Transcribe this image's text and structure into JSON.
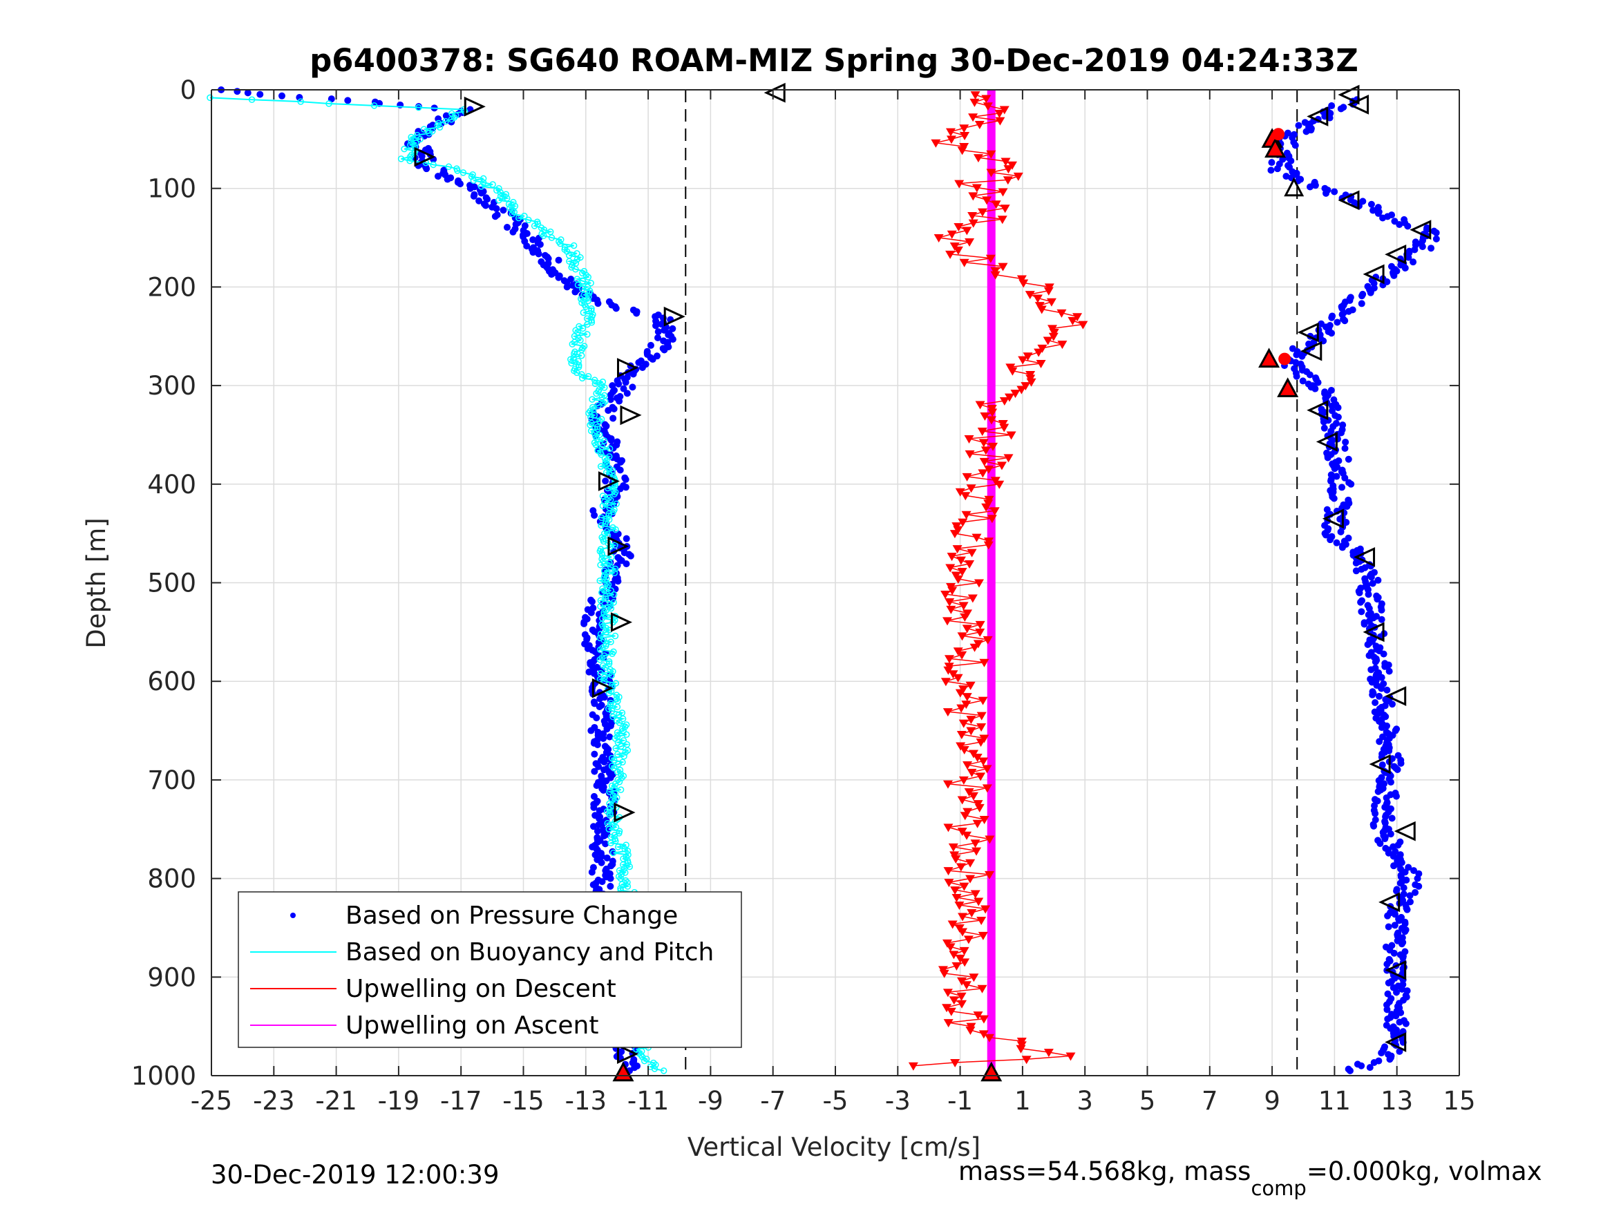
{
  "chart_data": {
    "type": "scatter",
    "title": "p6400378: SG640 ROAM-MIZ Spring 30-Dec-2019 04:24:33Z",
    "xlabel": "Vertical Velocity [cm/s]",
    "ylabel": "Depth [m]",
    "xlim": [
      -25,
      15
    ],
    "ylim": [
      0,
      1000
    ],
    "y_reversed": true,
    "grid": true,
    "x_ticks": [
      -25,
      -23,
      -21,
      -19,
      -17,
      -15,
      -13,
      -11,
      -9,
      -7,
      -5,
      -3,
      -1,
      1,
      3,
      5,
      7,
      9,
      11,
      13,
      15
    ],
    "y_ticks": [
      0,
      100,
      200,
      300,
      400,
      500,
      600,
      700,
      800,
      900,
      1000
    ],
    "reference_lines_x": [
      -9.8,
      9.8
    ],
    "legend_position": "bottom-left",
    "series": [
      {
        "name": "Based on Pressure Change",
        "color": "#0000ff",
        "style": "dots",
        "descent": {
          "x": [
            -25,
            -17,
            -18.5,
            -18,
            -16.5,
            -15.5,
            -14.5,
            -13.5,
            -12.5,
            -11.5,
            -10.5,
            -10.3,
            -11,
            -11.5,
            -11.8,
            -12.5,
            -12,
            -12.5,
            -11.7,
            -12.8,
            -12.5,
            -12.5,
            -12.4,
            -12.5,
            -12.4,
            -11.8,
            -11.8,
            -11.6
          ],
          "y": [
            0,
            20,
            50,
            80,
            100,
            130,
            160,
            200,
            215,
            225,
            230,
            250,
            270,
            285,
            300,
            330,
            400,
            430,
            460,
            540,
            600,
            650,
            720,
            800,
            830,
            900,
            950,
            995
          ]
        },
        "ascent": {
          "x": [
            11.5,
            10.5,
            9.5,
            9.2,
            10.5,
            11.5,
            12.8,
            14.2,
            13.5,
            12.5,
            11.5,
            10.5,
            9.5,
            10.5,
            11,
            11.2,
            11,
            12,
            12.3,
            12.5,
            12.8,
            12.5,
            13.5,
            13,
            13,
            13,
            12.8,
            11.5
          ],
          "y": [
            10,
            30,
            50,
            80,
            100,
            110,
            130,
            145,
            170,
            190,
            220,
            250,
            275,
            300,
            340,
            400,
            450,
            480,
            550,
            620,
            680,
            750,
            800,
            830,
            890,
            960,
            980,
            995
          ]
        }
      },
      {
        "name": "Based on Buoyancy and Pitch",
        "color": "#00ffff",
        "style": "line-markers",
        "x": [
          -25,
          -17,
          -18.5,
          -18.8,
          -17,
          -16,
          -15,
          -13.5,
          -13,
          -13,
          -13.2,
          -13.3,
          -12.5,
          -12.7,
          -12.2,
          -12.3,
          -12.3,
          -12.3,
          -11.8,
          -12.2,
          -11.7,
          -11.5,
          -11.3,
          -11.2,
          -11.2,
          -10.5
        ],
        "y": [
          8,
          20,
          50,
          70,
          80,
          100,
          130,
          160,
          200,
          230,
          260,
          285,
          300,
          330,
          400,
          470,
          540,
          600,
          650,
          730,
          800,
          850,
          900,
          950,
          985,
          995
        ]
      },
      {
        "name": "Upwelling on Descent",
        "color": "#ff0000",
        "style": "line-triangles",
        "x": [
          -0.5,
          0.5,
          -1.5,
          1,
          -0.5,
          0.2,
          -1.2,
          -0.5,
          1.5,
          2.5,
          1.5,
          0.5,
          0,
          -0.3,
          -0.5,
          -0.8,
          -0.7,
          -0.8,
          -0.9,
          -0.8,
          -0.7,
          -0.8,
          -0.9,
          -0.7,
          2,
          -2.5
        ],
        "y": [
          5,
          20,
          50,
          80,
          95,
          120,
          150,
          175,
          200,
          230,
          270,
          300,
          350,
          400,
          450,
          500,
          550,
          600,
          650,
          700,
          800,
          850,
          900,
          950,
          980,
          990
        ]
      },
      {
        "name": "Upwelling on Ascent",
        "color": "#ff00ff",
        "style": "thick-line",
        "x": [
          0,
          0
        ],
        "y": [
          0,
          1000
        ]
      }
    ],
    "markers": {
      "descent_triangles": [
        {
          "x": -16.6,
          "y": 17
        },
        {
          "x": -18.2,
          "y": 68
        },
        {
          "x": -10.2,
          "y": 230
        },
        {
          "x": -11.7,
          "y": 282
        },
        {
          "x": -11.6,
          "y": 330
        },
        {
          "x": -12.3,
          "y": 397
        },
        {
          "x": -12,
          "y": 463
        },
        {
          "x": -11.9,
          "y": 540
        },
        {
          "x": -12.5,
          "y": 607
        },
        {
          "x": -11.8,
          "y": 733
        },
        {
          "x": -12.6,
          "y": 828
        },
        {
          "x": -11.7,
          "y": 978
        }
      ],
      "ascent_triangles": [
        {
          "x": 11.5,
          "y": 5
        },
        {
          "x": 11.8,
          "y": 15
        },
        {
          "x": 10.5,
          "y": 27
        },
        {
          "x": 11.5,
          "y": 112
        },
        {
          "x": 13.8,
          "y": 142
        },
        {
          "x": 13,
          "y": 167
        },
        {
          "x": 12.3,
          "y": 187
        },
        {
          "x": 10.2,
          "y": 246
        },
        {
          "x": 10.3,
          "y": 265
        },
        {
          "x": 10.5,
          "y": 325
        },
        {
          "x": 10.8,
          "y": 357
        },
        {
          "x": 11,
          "y": 435
        },
        {
          "x": 12,
          "y": 474
        },
        {
          "x": 12.3,
          "y": 550
        },
        {
          "x": 13,
          "y": 615
        },
        {
          "x": 12.5,
          "y": 684
        },
        {
          "x": 13.3,
          "y": 752
        },
        {
          "x": 12.8,
          "y": 824
        },
        {
          "x": 13,
          "y": 893
        },
        {
          "x": 13,
          "y": 966
        },
        {
          "x": -6.9,
          "y": 3
        }
      ],
      "ascent_open_up_triangle": {
        "x": 9.7,
        "y": 100
      },
      "red_filled_triangles": [
        {
          "x": -11.8,
          "y": 997
        },
        {
          "x": 0,
          "y": 997
        },
        {
          "x": 9,
          "y": 50
        },
        {
          "x": 9.1,
          "y": 60
        },
        {
          "x": 8.9,
          "y": 273
        },
        {
          "x": 9.5,
          "y": 303
        }
      ],
      "red_dots": [
        {
          "x": 9.2,
          "y": 45
        },
        {
          "x": 9.4,
          "y": 273
        }
      ]
    }
  },
  "legend": {
    "items": [
      {
        "label": "Based on Pressure Change",
        "color": "#0000ff",
        "kind": "dot"
      },
      {
        "label": "Based on Buoyancy and Pitch",
        "color": "#00ffff",
        "kind": "line"
      },
      {
        "label": "Upwelling on Descent",
        "color": "#ff0000",
        "kind": "line"
      },
      {
        "label": "Upwelling on Ascent",
        "color": "#ff00ff",
        "kind": "line"
      }
    ]
  },
  "footer": {
    "date": "30-Dec-2019 12:00:39",
    "mass_prefix": "mass=54.568kg, mass",
    "mass_sub": "comp",
    "mass_suffix": "=0.000kg, volmax"
  }
}
